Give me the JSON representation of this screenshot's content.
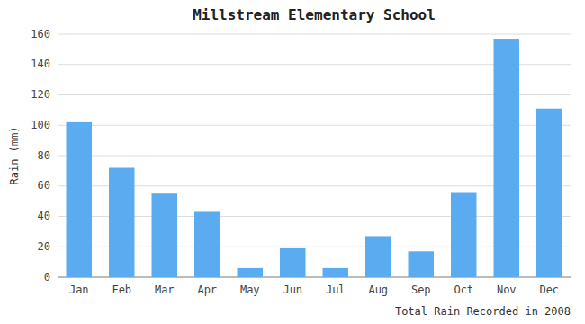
{
  "chart_data": {
    "type": "bar",
    "title": "Millstream Elementary School",
    "xlabel": "Total Rain Recorded in 2008",
    "ylabel": "Rain (mm)",
    "categories": [
      "Jan",
      "Feb",
      "Mar",
      "Apr",
      "May",
      "Jun",
      "Jul",
      "Aug",
      "Sep",
      "Oct",
      "Nov",
      "Dec"
    ],
    "values": [
      102,
      72,
      55,
      43,
      6,
      19,
      6,
      27,
      17,
      56,
      157,
      111
    ],
    "color": "#5aabf0",
    "ylim": [
      0,
      160
    ],
    "yticks": [
      0,
      20,
      40,
      60,
      80,
      100,
      120,
      140,
      160
    ],
    "grid": true
  }
}
